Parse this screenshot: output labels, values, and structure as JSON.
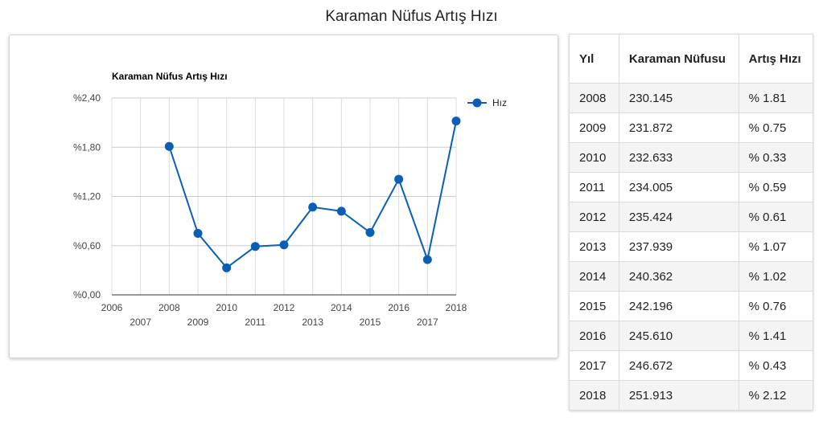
{
  "page": {
    "title": "Karaman Nüfus Artış Hızı"
  },
  "chart_data": {
    "type": "line",
    "title": "Karaman Nüfus Artış Hızı",
    "xlabel": "",
    "ylabel": "",
    "x": [
      2008,
      2009,
      2010,
      2011,
      2012,
      2013,
      2014,
      2015,
      2016,
      2017,
      2018
    ],
    "series": [
      {
        "name": "Hız",
        "values": [
          1.81,
          0.75,
          0.33,
          0.59,
          0.61,
          1.07,
          1.02,
          0.76,
          1.41,
          0.43,
          2.12
        ],
        "color": "#0a5fb4"
      }
    ],
    "xlim": [
      2006,
      2018
    ],
    "ylim": [
      0,
      2.4
    ],
    "x_ticks": [
      "2006",
      "2007",
      "2008",
      "2009",
      "2010",
      "2011",
      "2012",
      "2013",
      "2014",
      "2015",
      "2016",
      "2017",
      "2018"
    ],
    "y_ticks": [
      "%0,00",
      "%0,60",
      "%1,20",
      "%1,80",
      "%2,40"
    ],
    "y_tick_values": [
      0,
      0.6,
      1.2,
      1.8,
      2.4
    ],
    "grid": true,
    "legend": "right"
  },
  "table": {
    "headers": [
      "Yıl",
      "Karaman Nüfusu",
      "Artış Hızı"
    ],
    "rows": [
      [
        "2008",
        "230.145",
        "% 1.81"
      ],
      [
        "2009",
        "231.872",
        "% 0.75"
      ],
      [
        "2010",
        "232.633",
        "% 0.33"
      ],
      [
        "2011",
        "234.005",
        "% 0.59"
      ],
      [
        "2012",
        "235.424",
        "% 0.61"
      ],
      [
        "2013",
        "237.939",
        "% 1.07"
      ],
      [
        "2014",
        "240.362",
        "% 1.02"
      ],
      [
        "2015",
        "242.196",
        "% 0.76"
      ],
      [
        "2016",
        "245.610",
        "% 1.41"
      ],
      [
        "2017",
        "246.672",
        "% 0.43"
      ],
      [
        "2018",
        "251.913",
        "% 2.12"
      ]
    ]
  }
}
